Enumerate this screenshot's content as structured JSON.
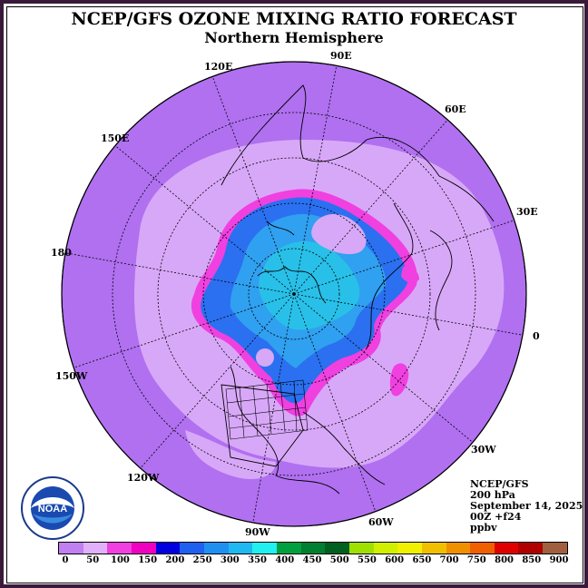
{
  "title": "NCEP/GFS OZONE MIXING RATIO FORECAST",
  "subtitle": "Northern Hemisphere",
  "longitude_labels": [
    "90E",
    "60E",
    "30E",
    "0",
    "30W",
    "60W",
    "90W",
    "120W",
    "150W",
    "180",
    "150E",
    "120E"
  ],
  "info": {
    "source": "NCEP/GFS",
    "level": "200 hPa",
    "date": "September 14, 2025",
    "run": "00Z +f24",
    "units": "ppbv"
  },
  "logo_text": "NOAA",
  "colorbar": {
    "ticks": [
      "0",
      "50",
      "100",
      "150",
      "200",
      "250",
      "300",
      "350",
      "400",
      "450",
      "500",
      "550",
      "600",
      "650",
      "700",
      "750",
      "800",
      "850",
      "900"
    ],
    "colors": [
      "#c080f0",
      "#e0b0f8",
      "#f040e0",
      "#f000c0",
      "#0000e0",
      "#2060f0",
      "#2090f0",
      "#20b8f0",
      "#20f0f0",
      "#00a040",
      "#008030",
      "#006020",
      "#a0e000",
      "#d0f000",
      "#f0f000",
      "#f0c000",
      "#f09000",
      "#f06000",
      "#e00000",
      "#b00000",
      "#a06040"
    ],
    "background_color": "#b070f0",
    "light_band_color": "#d8a8f8"
  }
}
